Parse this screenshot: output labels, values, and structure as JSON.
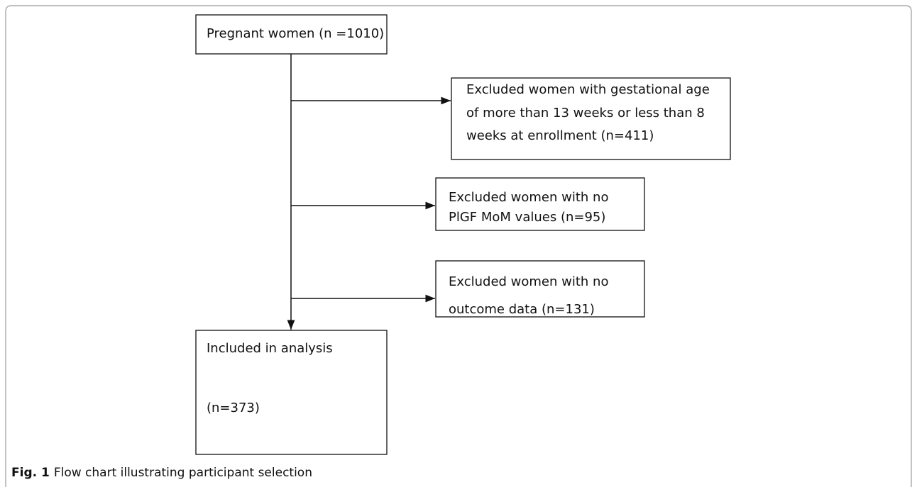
{
  "nodes": [
    {
      "lines": [
        "Pregnant women (n =1010)"
      ]
    },
    {
      "lines": [
        "Excluded women with gestational age",
        "of more than 13 weeks or less than 8",
        "weeks at enrollment (n=411)"
      ]
    },
    {
      "lines": [
        "Excluded women with no",
        "PlGF MoM values (n=95)"
      ]
    },
    {
      "lines": [
        "Excluded women with no",
        "outcome data (n=131)"
      ]
    },
    {
      "lines": [
        "Included in analysis",
        "(n=373)"
      ]
    }
  ],
  "caption": {
    "label": "Fig. 1",
    "text": "Flow chart illustrating participant selection"
  }
}
